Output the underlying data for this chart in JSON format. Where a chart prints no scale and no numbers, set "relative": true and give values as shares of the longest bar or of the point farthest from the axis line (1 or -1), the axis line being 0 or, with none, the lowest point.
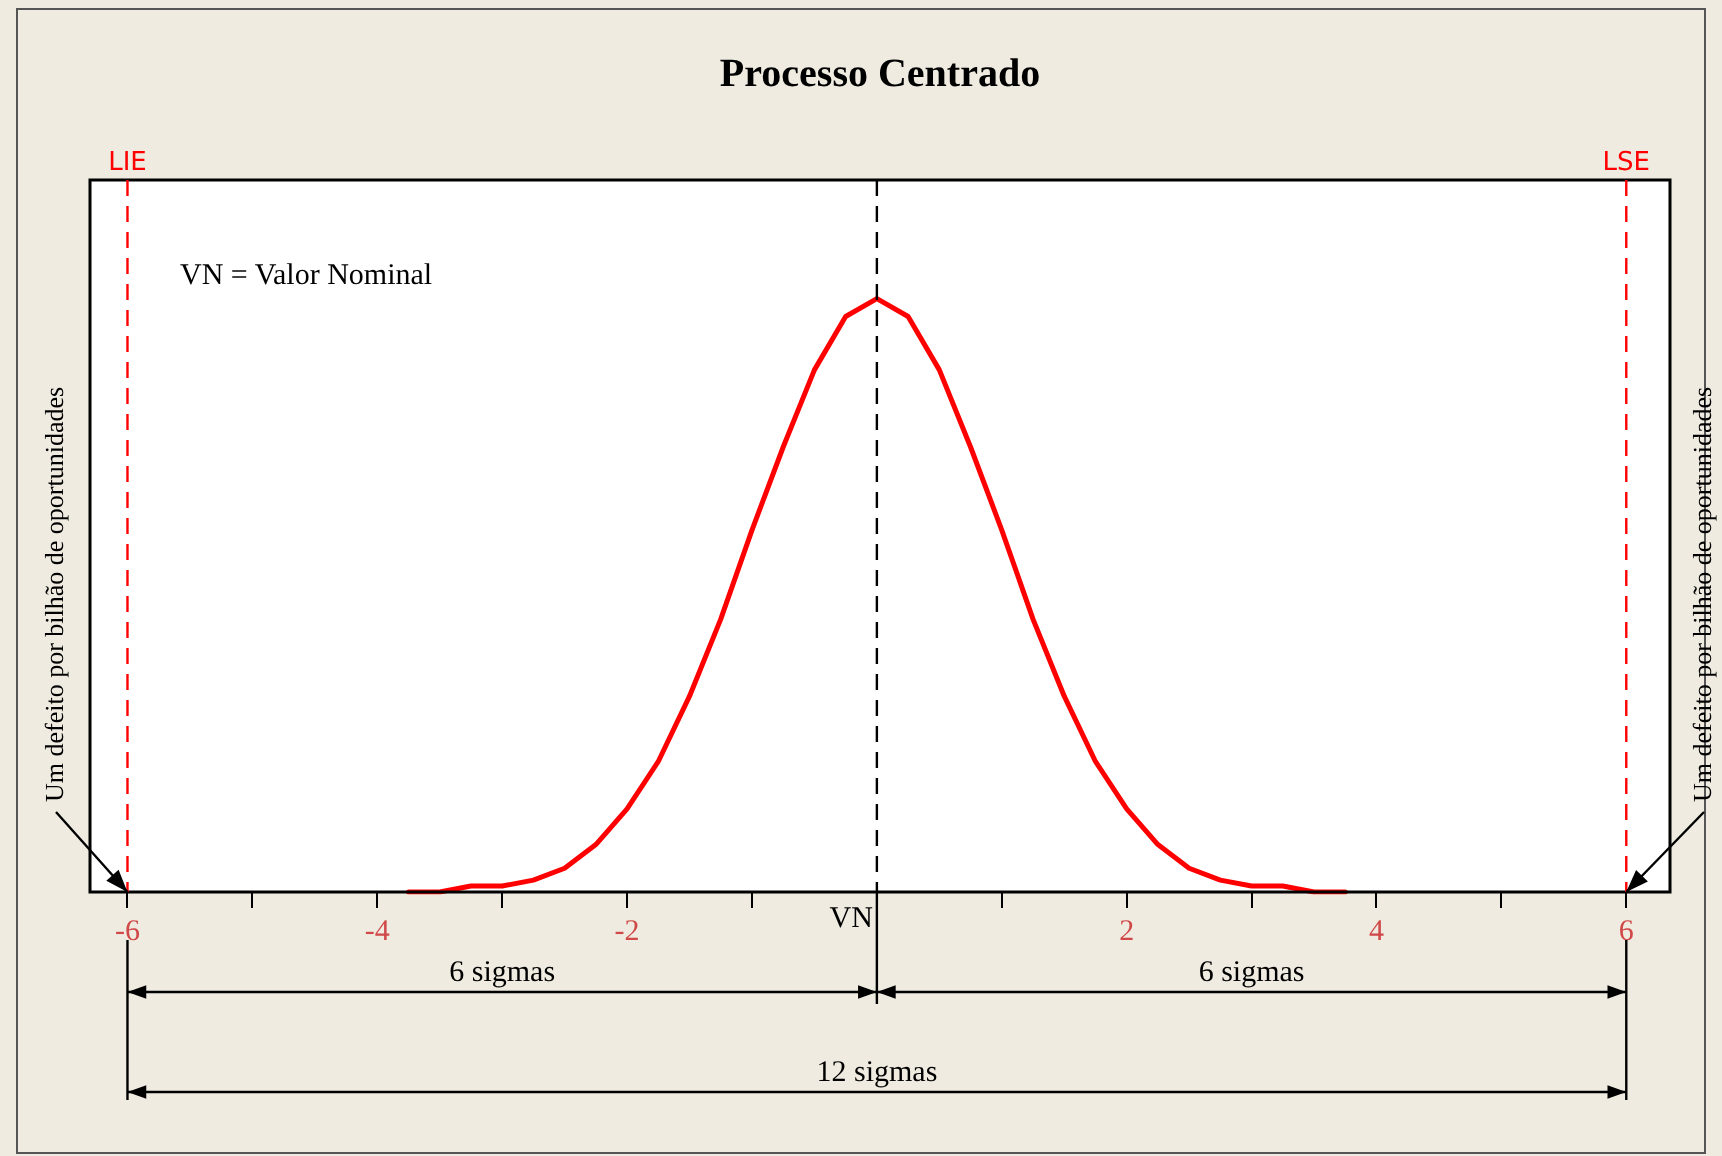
{
  "chart_data": {
    "type": "line",
    "title": "Processo Centrado",
    "relative": true,
    "x": [
      -3.75,
      -3.5,
      -3.25,
      -3,
      -2.75,
      -2.5,
      -2.25,
      -2,
      -1.75,
      -1.5,
      -1.25,
      -1,
      -0.75,
      -0.5,
      -0.25,
      0,
      0.25,
      0.5,
      0.75,
      1,
      1.25,
      1.5,
      1.75,
      2,
      2.25,
      2.5,
      2.75,
      3,
      3.25,
      3.5,
      3.75
    ],
    "series": [
      {
        "color": "#ff0000",
        "values": [
          0,
          0,
          0.01,
          0.01,
          0.02,
          0.04,
          0.08,
          0.14,
          0.22,
          0.33,
          0.46,
          0.61,
          0.75,
          0.88,
          0.97,
          1,
          0.97,
          0.88,
          0.75,
          0.61,
          0.46,
          0.33,
          0.22,
          0.14,
          0.08,
          0.04,
          0.02,
          0.01,
          0.01,
          0,
          0
        ]
      }
    ],
    "xlim": [
      -6.3,
      6.35
    ],
    "xticks": [
      -6,
      {
        "value": -5,
        "label": null
      },
      -4,
      {
        "value": -3,
        "label": null
      },
      -2,
      {
        "value": -1,
        "label": null
      },
      {
        "value": 0,
        "label": null
      },
      {
        "value": 1,
        "label": null
      },
      2,
      {
        "value": 3,
        "label": null
      },
      4,
      {
        "value": 5,
        "label": null
      },
      6
    ],
    "ref_lines": [
      {
        "axis": "x",
        "value": -6,
        "label": "LIE",
        "color": "#ff0000",
        "line_style": "dashed"
      },
      {
        "axis": "x",
        "value": 0,
        "label": "VN",
        "color": "#000000",
        "line_style": "dashed"
      },
      {
        "axis": "x",
        "value": 6,
        "label": "LSE",
        "color": "#ff0000",
        "line_style": "dashed"
      }
    ],
    "annotations": [
      "VN = Valor Nominal",
      {
        "text": "Um defeito por bilhão de oportunidades",
        "x": -6,
        "y": 0
      },
      {
        "text": "Um defeito por bilhão de oportunidades",
        "x": 6,
        "y": 0
      },
      "6 sigmas",
      "6 sigmas",
      "12 sigmas"
    ],
    "grid": false,
    "legend": false,
    "marker": "none",
    "line_style": "solid"
  }
}
